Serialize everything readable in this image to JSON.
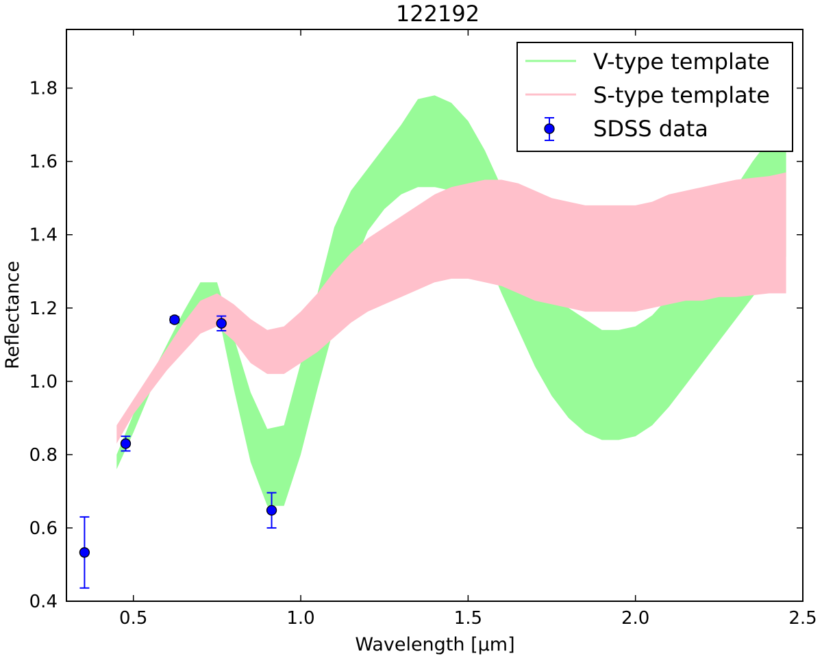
{
  "chart_data": {
    "type": "area",
    "title": "122192",
    "xlabel": "Wavelength [μm]",
    "ylabel": "Reflectance",
    "xlim": [
      0.3,
      2.5
    ],
    "ylim": [
      0.4,
      1.96
    ],
    "x_ticks": [
      0.5,
      1.0,
      1.5,
      2.0,
      2.5
    ],
    "x_tick_labels": [
      "0.5",
      "1.0",
      "1.5",
      "2.0",
      "2.5"
    ],
    "y_ticks": [
      0.4,
      0.6,
      0.8,
      1.0,
      1.2,
      1.4,
      1.6,
      1.8
    ],
    "y_tick_labels": [
      "0.4",
      "0.6",
      "0.8",
      "1.0",
      "1.2",
      "1.4",
      "1.6",
      "1.8"
    ],
    "grid": false,
    "legend_position": "top-right",
    "series": [
      {
        "name": "V-type template",
        "kind": "band",
        "color": "#98fb98",
        "x": [
          0.45,
          0.5,
          0.55,
          0.6,
          0.65,
          0.7,
          0.75,
          0.8,
          0.85,
          0.9,
          0.95,
          1.0,
          1.05,
          1.1,
          1.15,
          1.2,
          1.25,
          1.3,
          1.35,
          1.4,
          1.45,
          1.5,
          1.55,
          1.6,
          1.65,
          1.7,
          1.75,
          1.8,
          1.85,
          1.9,
          1.95,
          2.0,
          2.05,
          2.1,
          2.15,
          2.2,
          2.25,
          2.3,
          2.35,
          2.4,
          2.45
        ],
        "upper": [
          0.8,
          0.91,
          1.01,
          1.1,
          1.19,
          1.27,
          1.27,
          1.12,
          0.97,
          0.87,
          0.88,
          1.05,
          1.24,
          1.42,
          1.52,
          1.58,
          1.64,
          1.7,
          1.77,
          1.78,
          1.76,
          1.71,
          1.63,
          1.53,
          1.42,
          1.33,
          1.25,
          1.2,
          1.17,
          1.14,
          1.14,
          1.15,
          1.18,
          1.23,
          1.3,
          1.38,
          1.46,
          1.53,
          1.6,
          1.66,
          1.71
        ],
        "lower": [
          0.76,
          0.86,
          0.97,
          1.06,
          1.15,
          1.21,
          1.2,
          0.98,
          0.78,
          0.66,
          0.66,
          0.8,
          0.98,
          1.15,
          1.3,
          1.41,
          1.47,
          1.51,
          1.53,
          1.53,
          1.52,
          1.45,
          1.35,
          1.24,
          1.14,
          1.04,
          0.96,
          0.9,
          0.86,
          0.84,
          0.84,
          0.85,
          0.88,
          0.93,
          0.99,
          1.05,
          1.11,
          1.17,
          1.23,
          1.29,
          1.34
        ]
      },
      {
        "name": "S-type template",
        "kind": "band",
        "color": "#ffc0cb",
        "x": [
          0.45,
          0.5,
          0.55,
          0.6,
          0.65,
          0.7,
          0.75,
          0.8,
          0.85,
          0.9,
          0.95,
          1.0,
          1.05,
          1.1,
          1.15,
          1.2,
          1.25,
          1.3,
          1.35,
          1.4,
          1.45,
          1.5,
          1.55,
          1.6,
          1.65,
          1.7,
          1.75,
          1.8,
          1.85,
          1.9,
          1.95,
          2.0,
          2.05,
          2.1,
          2.15,
          2.2,
          2.25,
          2.3,
          2.35,
          2.4,
          2.45
        ],
        "upper": [
          0.88,
          0.95,
          1.02,
          1.09,
          1.16,
          1.22,
          1.24,
          1.21,
          1.17,
          1.14,
          1.15,
          1.19,
          1.24,
          1.3,
          1.35,
          1.39,
          1.42,
          1.45,
          1.48,
          1.51,
          1.53,
          1.54,
          1.55,
          1.55,
          1.54,
          1.52,
          1.5,
          1.49,
          1.48,
          1.48,
          1.48,
          1.48,
          1.49,
          1.51,
          1.52,
          1.53,
          1.54,
          1.55,
          1.555,
          1.56,
          1.57
        ],
        "lower": [
          0.83,
          0.91,
          0.97,
          1.03,
          1.08,
          1.13,
          1.15,
          1.11,
          1.05,
          1.02,
          1.02,
          1.05,
          1.08,
          1.12,
          1.16,
          1.19,
          1.21,
          1.23,
          1.25,
          1.27,
          1.28,
          1.28,
          1.27,
          1.26,
          1.24,
          1.22,
          1.21,
          1.2,
          1.19,
          1.19,
          1.19,
          1.19,
          1.2,
          1.21,
          1.22,
          1.22,
          1.23,
          1.23,
          1.235,
          1.24,
          1.24
        ]
      },
      {
        "name": "SDSS data",
        "kind": "errorbar",
        "color": "#0000ff",
        "x": [
          0.354,
          0.477,
          0.623,
          0.763,
          0.913
        ],
        "y": [
          0.533,
          0.83,
          1.168,
          1.158,
          0.648
        ],
        "yerr": [
          0.097,
          0.02,
          0.008,
          0.02,
          0.048
        ]
      }
    ]
  }
}
